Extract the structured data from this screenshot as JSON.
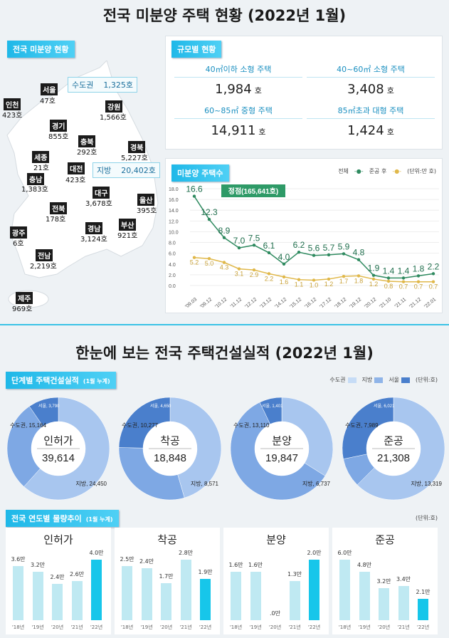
{
  "title1": "전국 미분양 주택 현황 (2022년 1월)",
  "map": {
    "tag": "전국 미분양 현황",
    "capital": {
      "label": "수도권",
      "value": "1,325호"
    },
    "local": {
      "label": "지방",
      "value": "20,402호"
    },
    "regions": [
      {
        "name": "서울",
        "value": "47호"
      },
      {
        "name": "인천",
        "value": "423호"
      },
      {
        "name": "경기",
        "value": "855호"
      },
      {
        "name": "강원",
        "value": "1,566호"
      },
      {
        "name": "충북",
        "value": "292호"
      },
      {
        "name": "경북",
        "value": "5,227호"
      },
      {
        "name": "세종",
        "value": "21호"
      },
      {
        "name": "대전",
        "value": "423호"
      },
      {
        "name": "충남",
        "value": "1,383호"
      },
      {
        "name": "대구",
        "value": "3,678호"
      },
      {
        "name": "울산",
        "value": "395호"
      },
      {
        "name": "전북",
        "value": "178호"
      },
      {
        "name": "경남",
        "value": "3,124호"
      },
      {
        "name": "부산",
        "value": "921호"
      },
      {
        "name": "광주",
        "value": "6호"
      },
      {
        "name": "전남",
        "value": "2,219호"
      },
      {
        "name": "제주",
        "value": "969호"
      }
    ]
  },
  "size": {
    "tag": "규모별 현황",
    "unit": "호",
    "cells": [
      {
        "label": "40㎡이하 소형 주택",
        "value": "1,984"
      },
      {
        "label": "40~60㎡ 소형 주택",
        "value": "3,408"
      },
      {
        "label": "60~85㎡ 중형 주택",
        "value": "14,911"
      },
      {
        "label": "85㎡초과 대형 주택",
        "value": "1,424"
      }
    ]
  },
  "chart_data": [
    {
      "type": "line",
      "title": "미분양 주택수",
      "unit": "(단위:만 호)",
      "ylim": [
        0,
        18
      ],
      "yticks": [
        "0.0",
        "2.0",
        "4.0",
        "6.0",
        "8.0",
        "10.0",
        "12.0",
        "14.0",
        "16.0",
        "18.0"
      ],
      "x": [
        "'09.03",
        "'09.12",
        "'10.12",
        "'11.12",
        "'12.12",
        "'13.12",
        "'14.12",
        "'15.12",
        "'16.12",
        "'17.12",
        "'18.12",
        "'19.12",
        "'20.12",
        "'21.10",
        "'21.11",
        "'21.12",
        "'22.01"
      ],
      "series": [
        {
          "name": "전체",
          "color": "#2e8a5f",
          "values": [
            16.6,
            12.3,
            8.9,
            7.0,
            7.5,
            6.1,
            4.0,
            6.2,
            5.6,
            5.7,
            5.9,
            4.8,
            1.9,
            1.4,
            1.4,
            1.8,
            2.2
          ]
        },
        {
          "name": "준공 후",
          "color": "#e0b84a",
          "values": [
            5.2,
            5.0,
            4.3,
            3.1,
            2.9,
            2.2,
            1.6,
            1.1,
            1.0,
            1.2,
            1.7,
            1.8,
            1.2,
            0.8,
            0.7,
            0.7,
            0.7
          ]
        }
      ],
      "annotation": "정점(165,641호)"
    },
    {
      "type": "pie",
      "title": "단계별 주택건설실적",
      "subtitle": "(1월 누계)",
      "unit": "(단위:호)",
      "legend": [
        "수도권",
        "지방",
        "서울"
      ],
      "charts": [
        {
          "name": "인허가",
          "total": "39,614",
          "seoul": 3790,
          "capital": 15164,
          "local": 24450,
          "seoul_l": "서울, 3,790",
          "capital_l": "수도권, 15,164",
          "local_l": "지방, 24,450"
        },
        {
          "name": "착공",
          "total": "18,848",
          "seoul": 4650,
          "capital": 10277,
          "local": 8571,
          "seoul_l": "서울, 4,650",
          "capital_l": "수도권, 10,277",
          "local_l": "지방, 8,571"
        },
        {
          "name": "분양",
          "total": "19,847",
          "seoul": 1401,
          "capital": 13110,
          "local": 6737,
          "seoul_l": "서울, 1,401",
          "capital_l": "수도권, 13,110",
          "local_l": "지방, 6,737"
        },
        {
          "name": "준공",
          "total": "21,308",
          "seoul": 6021,
          "capital": 7989,
          "local": 13319,
          "seoul_l": "서울, 6,021",
          "capital_l": "수도권, 7,989",
          "local_l": "지방, 13,319"
        }
      ]
    },
    {
      "type": "bar",
      "title": "전국 연도별 물량추이",
      "subtitle": "(1월 누계)",
      "unit": "(단위:호)",
      "categories": [
        "'18년",
        "'19년",
        "'20년",
        "'21년",
        "'22년"
      ],
      "charts": [
        {
          "name": "인허가",
          "values": [
            3.6,
            3.2,
            2.4,
            2.6,
            4.0
          ],
          "labels": [
            "3.6만",
            "3.2만",
            "2.4만",
            "2.6만",
            "4.0만"
          ]
        },
        {
          "name": "착공",
          "values": [
            2.5,
            2.4,
            1.7,
            2.8,
            1.9
          ],
          "labels": [
            "2.5만",
            "2.4만",
            "1.7만",
            "2.8만",
            "1.9만"
          ]
        },
        {
          "name": "분양",
          "values": [
            1.6,
            1.6,
            0,
            1.3,
            2.0
          ],
          "labels": [
            "1.6만",
            "1.6만",
            ".0만",
            "1.3만",
            "2.0만"
          ]
        },
        {
          "name": "준공",
          "values": [
            6.0,
            4.8,
            3.2,
            3.4,
            2.1
          ],
          "labels": [
            "6.0만",
            "4.8만",
            "3.2만",
            "3.4만",
            "2.1만"
          ]
        }
      ]
    }
  ],
  "title2": "한눈에 보는 전국 주택건설실적 (2022년 1월)",
  "colors": {
    "capital": "#a8c6ef",
    "local": "#7ea8e4",
    "seoul": "#4a7fcc",
    "bar": "#bfe9f2",
    "bar_current": "#17c6ea"
  }
}
